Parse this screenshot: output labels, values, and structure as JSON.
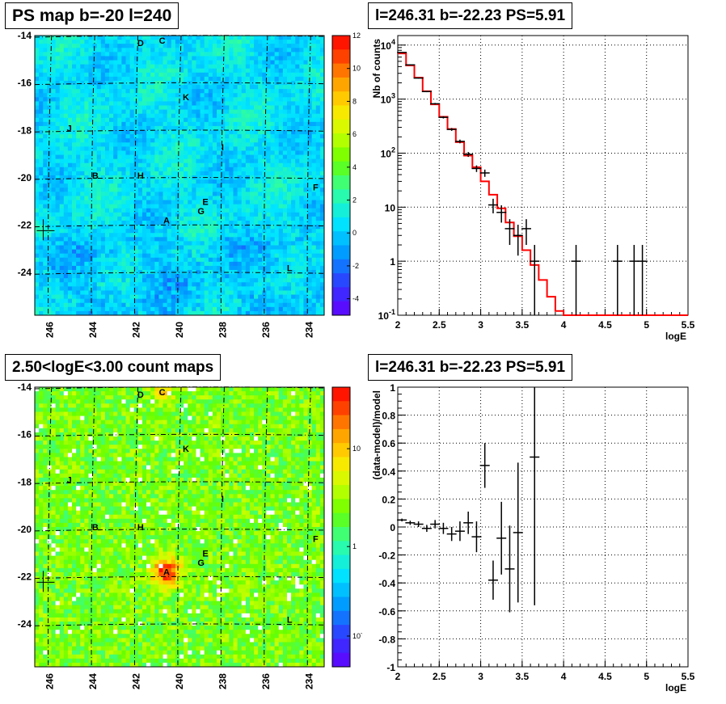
{
  "panels": {
    "top_left_title": "PS map b=-20 l=240",
    "top_right_title": "l=246.31 b=-22.23 PS=5.91",
    "bottom_left_title": "2.50<logE<3.00 count maps",
    "bottom_right_title": "l=246.31 b=-22.23 PS=5.91"
  },
  "chart_data": [
    {
      "type": "heatmap",
      "title": "PS map b=-20 l=240",
      "x_ticks": [
        "246",
        "244",
        "242",
        "240",
        "238",
        "236",
        "234"
      ],
      "y_ticks": [
        "-14",
        "-16",
        "-18",
        "-20",
        "-22",
        "-24"
      ],
      "xlim": [
        246.7,
        233.3
      ],
      "ylim": [
        -25.8,
        -14
      ],
      "colorbar": {
        "min": -5,
        "max": 12,
        "ticks": [
          "12",
          "10",
          "8",
          "6",
          "4",
          "2",
          "0",
          "-2",
          "-4"
        ]
      },
      "sources": [
        {
          "label": "D",
          "l": 241.8,
          "b": -14.3
        },
        {
          "label": "C",
          "l": 240.8,
          "b": -14.2
        },
        {
          "label": "K",
          "l": 239.7,
          "b": -16.6
        },
        {
          "label": "J",
          "l": 245.1,
          "b": -17.9
        },
        {
          "label": "I",
          "l": 238.0,
          "b": -18.7
        },
        {
          "label": "B",
          "l": 243.9,
          "b": -19.9
        },
        {
          "label": "H",
          "l": 241.8,
          "b": -19.9
        },
        {
          "label": "F",
          "l": 233.7,
          "b": -20.4
        },
        {
          "label": "E",
          "l": 238.8,
          "b": -21.0
        },
        {
          "label": "G",
          "l": 239.0,
          "b": -21.4
        },
        {
          "label": "A",
          "l": 240.6,
          "b": -21.8
        },
        {
          "label": "L",
          "l": 234.9,
          "b": -23.8
        }
      ],
      "marker": {
        "l": 246.31,
        "b": -22.23
      }
    },
    {
      "type": "line",
      "title": "l=246.31 b=-22.23 PS=5.91",
      "xlabel": "logE",
      "ylabel": "Nb of counts",
      "yscale": "log",
      "xlim": [
        2,
        5.5
      ],
      "ylim": [
        0.1,
        15000
      ],
      "x_ticks": [
        "2",
        "2.5",
        "3",
        "3.5",
        "4",
        "4.5",
        "5",
        "5.5"
      ],
      "y_ticks": [
        "10^4",
        "10^3",
        "10^2",
        "10",
        "1",
        "10^-1"
      ],
      "series": [
        {
          "kind": "model-step",
          "color": "#ff0000",
          "bin_width": 0.1,
          "x": [
            2.05,
            2.15,
            2.25,
            2.35,
            2.45,
            2.55,
            2.65,
            2.75,
            2.85,
            2.95,
            3.05,
            3.15,
            3.25,
            3.35,
            3.45,
            3.55,
            3.65,
            3.75,
            3.85,
            3.95,
            4.05
          ],
          "y": [
            7000,
            4200,
            2500,
            1400,
            800,
            470,
            280,
            160,
            90,
            55,
            30,
            17,
            9.5,
            5.2,
            2.9,
            1.6,
            0.85,
            0.45,
            0.22,
            0.12,
            0.1
          ]
        },
        {
          "kind": "data",
          "color": "#000000",
          "x": [
            2.05,
            2.15,
            2.25,
            2.35,
            2.45,
            2.55,
            2.65,
            2.75,
            2.85,
            2.95,
            3.05,
            3.15,
            3.25,
            3.35,
            3.45,
            3.55,
            3.65,
            4.15,
            4.65,
            4.85,
            4.95
          ],
          "y": [
            7300,
            4300,
            2450,
            1380,
            820,
            460,
            275,
            165,
            95,
            52,
            43,
            11,
            8,
            4,
            3,
            4,
            1,
            1,
            1,
            1,
            1
          ]
        }
      ]
    },
    {
      "type": "heatmap",
      "title": "2.50<logE<3.00 count maps",
      "x_ticks": [
        "246",
        "244",
        "242",
        "240",
        "238",
        "236",
        "234"
      ],
      "y_ticks": [
        "-14",
        "-16",
        "-18",
        "-20",
        "-22",
        "-24"
      ],
      "xlim": [
        246.7,
        233.3
      ],
      "ylim": [
        -25.8,
        -14
      ],
      "colorbar": {
        "scale": "log",
        "ticks": [
          "10",
          "1",
          "10^-1"
        ]
      },
      "sources": [
        {
          "label": "D",
          "l": 241.8,
          "b": -14.3
        },
        {
          "label": "C",
          "l": 240.8,
          "b": -14.2
        },
        {
          "label": "K",
          "l": 239.7,
          "b": -16.6
        },
        {
          "label": "J",
          "l": 245.1,
          "b": -17.9
        },
        {
          "label": "I",
          "l": 238.0,
          "b": -18.7
        },
        {
          "label": "B",
          "l": 243.9,
          "b": -19.9
        },
        {
          "label": "H",
          "l": 241.8,
          "b": -19.9
        },
        {
          "label": "F",
          "l": 233.7,
          "b": -20.4
        },
        {
          "label": "E",
          "l": 238.8,
          "b": -21.0
        },
        {
          "label": "G",
          "l": 239.0,
          "b": -21.4
        },
        {
          "label": "A",
          "l": 240.6,
          "b": -21.8
        },
        {
          "label": "L",
          "l": 234.9,
          "b": -23.8
        }
      ],
      "marker": {
        "l": 246.31,
        "b": -22.23
      }
    },
    {
      "type": "scatter",
      "title": "l=246.31 b=-22.23 PS=5.91",
      "xlabel": "logE",
      "ylabel": "(data-model)/model",
      "xlim": [
        2,
        5.5
      ],
      "ylim": [
        -1,
        1
      ],
      "x_ticks": [
        "2",
        "2.5",
        "3",
        "3.5",
        "4",
        "4.5",
        "5",
        "5.5"
      ],
      "y_ticks": [
        "1",
        "0.8",
        "0.6",
        "0.4",
        "0.2",
        "0",
        "-0.2",
        "-0.4",
        "-0.6",
        "-0.8",
        "-1"
      ],
      "series": [
        {
          "color": "#000000",
          "x": [
            2.05,
            2.15,
            2.25,
            2.35,
            2.45,
            2.55,
            2.65,
            2.75,
            2.85,
            2.95,
            3.05,
            3.15,
            3.25,
            3.35,
            3.45,
            3.65
          ],
          "y": [
            0.05,
            0.03,
            0.02,
            -0.01,
            0.02,
            -0.01,
            -0.05,
            -0.03,
            0.03,
            -0.07,
            0.44,
            -0.38,
            -0.08,
            -0.3,
            -0.04,
            0.5
          ],
          "err": [
            0.01,
            0.015,
            0.02,
            0.025,
            0.03,
            0.04,
            0.05,
            0.07,
            0.08,
            0.11,
            0.16,
            0.14,
            0.26,
            0.31,
            0.5,
            1.06
          ]
        }
      ]
    }
  ]
}
